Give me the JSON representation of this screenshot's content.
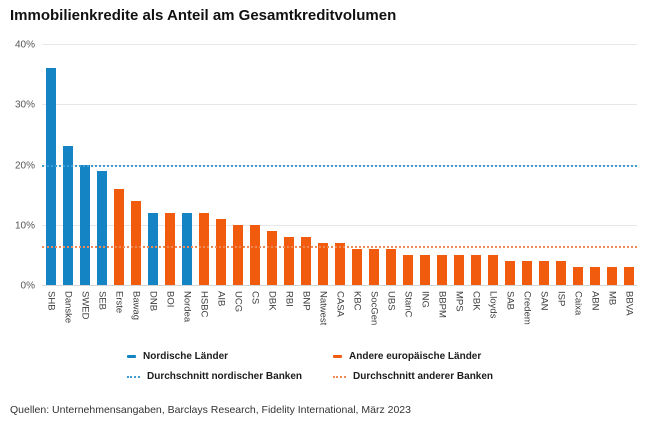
{
  "title": "Immobilienkredite als Anteil am Gesamtkreditvolumen",
  "footer": "Quellen: Unternehmensangaben, Barclays Research, Fidelity International, März 2023",
  "colors": {
    "nordic": "#1584c5",
    "other": "#f05b0e",
    "nordic_avg_line": "#3e9ed2",
    "other_avg_line": "#ef8a57",
    "gridline": "#e7e7e7",
    "axis_text": "#565656"
  },
  "legend": {
    "items": [
      {
        "label": "Nordische Länder",
        "marker": "bar",
        "color": "#1584c5"
      },
      {
        "label": "Andere europäische Länder",
        "marker": "bar",
        "color": "#f05b0e"
      },
      {
        "label": "Durchschnitt nordischer Banken",
        "marker": "dotted",
        "color": "#3e9ed2"
      },
      {
        "label": "Durchschnitt anderer Banken",
        "marker": "dotted",
        "color": "#ef8a57"
      }
    ]
  },
  "chart_data": {
    "type": "bar",
    "title": "Immobilienkredite als Anteil am Gesamtkreditvolumen",
    "xlabel": "",
    "ylabel": "",
    "ylim": [
      0,
      40
    ],
    "y_ticks": [
      {
        "label": "40%",
        "value": 40
      },
      {
        "label": "30%",
        "value": 30
      },
      {
        "label": "20%",
        "value": 20
      },
      {
        "label": "10%",
        "value": 10
      },
      {
        "label": "0%",
        "value": 0
      }
    ],
    "grid": true,
    "legend_position": "bottom",
    "categories": [
      "SHB",
      "Danske",
      "SWED",
      "SEB",
      "Erste",
      "Bawag",
      "DNB",
      "BOI",
      "Nordea",
      "HSBC",
      "AIB",
      "UCG",
      "CS",
      "DBK",
      "RBI",
      "BNP",
      "Natwest",
      "CASA",
      "KBC",
      "SocGen",
      "UBS",
      "StanC",
      "ING",
      "BBPM",
      "MPS",
      "CBK",
      "Lloyds",
      "SAB",
      "Credem",
      "SAN",
      "ISP",
      "Caixa",
      "ABN",
      "MB",
      "BBVA"
    ],
    "values": [
      36,
      23,
      20,
      19,
      16,
      14,
      12,
      12,
      12,
      12,
      11,
      10,
      10,
      9,
      8,
      8,
      7,
      7,
      6,
      6,
      6,
      5,
      5,
      5,
      5,
      5,
      5,
      4,
      4,
      4,
      4,
      3,
      3,
      3,
      3
    ],
    "groups": [
      "nordic",
      "nordic",
      "nordic",
      "nordic",
      "other",
      "other",
      "nordic",
      "other",
      "nordic",
      "other",
      "other",
      "other",
      "other",
      "other",
      "other",
      "other",
      "other",
      "other",
      "other",
      "other",
      "other",
      "other",
      "other",
      "other",
      "other",
      "other",
      "other",
      "other",
      "other",
      "other",
      "other",
      "other",
      "other",
      "other",
      "other"
    ],
    "reference_lines": [
      {
        "name": "Durchschnitt nordischer Banken",
        "value": 20,
        "group": "nordic"
      },
      {
        "name": "Durchschnitt anderer Banken",
        "value": 6.4,
        "group": "other"
      }
    ]
  }
}
